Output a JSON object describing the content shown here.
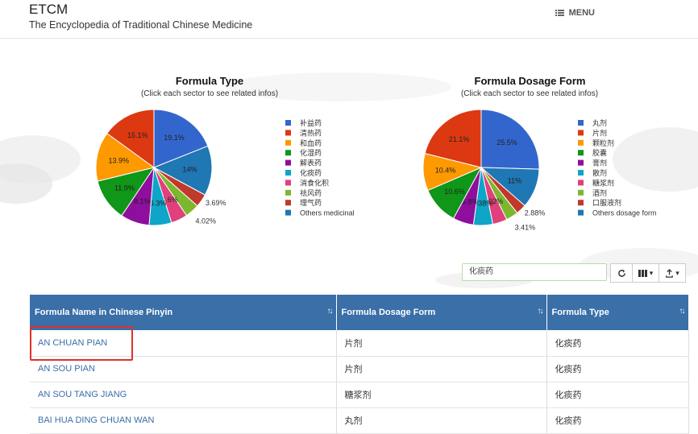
{
  "header": {
    "brand": "ETCM",
    "subtitle": "The Encyclopedia of Traditional Chinese Medicine",
    "menu_label": "MENU"
  },
  "charts": [
    {
      "title": "Formula Type",
      "subtitle": "(Click each sector to see related infos)",
      "legend": [
        "补益药",
        "清热药",
        "和血药",
        "化湿药",
        "解表药",
        "化痰药",
        "消食化积",
        "祛风药",
        "理气药",
        "Others medicinal"
      ]
    },
    {
      "title": "Formula Dosage Form",
      "subtitle": "(Click each sector to see related infos)",
      "legend": [
        "丸剂",
        "片剂",
        "颗粒剂",
        "胶囊",
        "膏剂",
        "散剂",
        "糖浆剂",
        "酒剂",
        "口服液剂",
        "Others dosage form"
      ]
    }
  ],
  "chart_data": [
    {
      "type": "pie",
      "title": "Formula Type",
      "slices": [
        {
          "label": "补益药",
          "value": 19.1,
          "color": "#3366cc",
          "text": "19.1%"
        },
        {
          "label": "Others medicinal",
          "value": 14.0,
          "color": "#1f77b4",
          "text": "14%"
        },
        {
          "label": "理气药",
          "value": 3.69,
          "color": "#c0392b",
          "text": "3.69%"
        },
        {
          "label": "祛风药",
          "value": 4.02,
          "color": "#7cb82f",
          "text": "4.02%"
        },
        {
          "label": "消食化积",
          "value": 4.6,
          "color": "#e0407b",
          "text": "4.6%"
        },
        {
          "label": "化痰药",
          "value": 6.3,
          "color": "#0ea5c9",
          "text": "6.3%"
        },
        {
          "label": "解表药",
          "value": 8.1,
          "color": "#8e0e9e",
          "text": "8.1%"
        },
        {
          "label": "化湿药",
          "value": 11.9,
          "color": "#109618",
          "text": "11.9%"
        },
        {
          "label": "和血药",
          "value": 13.9,
          "color": "#ff9900",
          "text": "13.9%"
        },
        {
          "label": "清热药",
          "value": 15.1,
          "color": "#dc3912",
          "text": "15.1%"
        }
      ]
    },
    {
      "type": "pie",
      "title": "Formula Dosage Form",
      "slices": [
        {
          "label": "丸剂",
          "value": 25.5,
          "color": "#3366cc",
          "text": "25.5%"
        },
        {
          "label": "Others dosage form",
          "value": 11.0,
          "color": "#1f77b4",
          "text": "11%"
        },
        {
          "label": "口服液剂",
          "value": 2.88,
          "color": "#c0392b",
          "text": "2.88%"
        },
        {
          "label": "酒剂",
          "value": 3.41,
          "color": "#7cb82f",
          "text": "3.41%"
        },
        {
          "label": "糖浆剂",
          "value": 4.02,
          "color": "#e0407b",
          "text": "4.02%"
        },
        {
          "label": "散剂",
          "value": 5.38,
          "color": "#0ea5c9",
          "text": "5.38%"
        },
        {
          "label": "膏剂",
          "value": 5.8,
          "color": "#8e0e9e",
          "text": "5.8%"
        },
        {
          "label": "胶囊",
          "value": 10.6,
          "color": "#109618",
          "text": "10.6%"
        },
        {
          "label": "颗粒剂",
          "value": 10.4,
          "color": "#ff9900",
          "text": "10.4%"
        },
        {
          "label": "片剂",
          "value": 21.1,
          "color": "#dc3912",
          "text": "21.1%"
        }
      ]
    }
  ],
  "search": {
    "value": "化痰药"
  },
  "table": {
    "columns": [
      "Formula Name in Chinese Pinyin",
      "Formula Dosage Form",
      "Formula Type"
    ],
    "rows": [
      [
        "AN CHUAN PIAN",
        "片剂",
        "化痰药"
      ],
      [
        "AN SOU PIAN",
        "片剂",
        "化痰药"
      ],
      [
        "AN SOU TANG JIANG",
        "糖浆剂",
        "化痰药"
      ],
      [
        "BAI HUA DING CHUAN WAN",
        "丸剂",
        "化痰药"
      ]
    ]
  }
}
